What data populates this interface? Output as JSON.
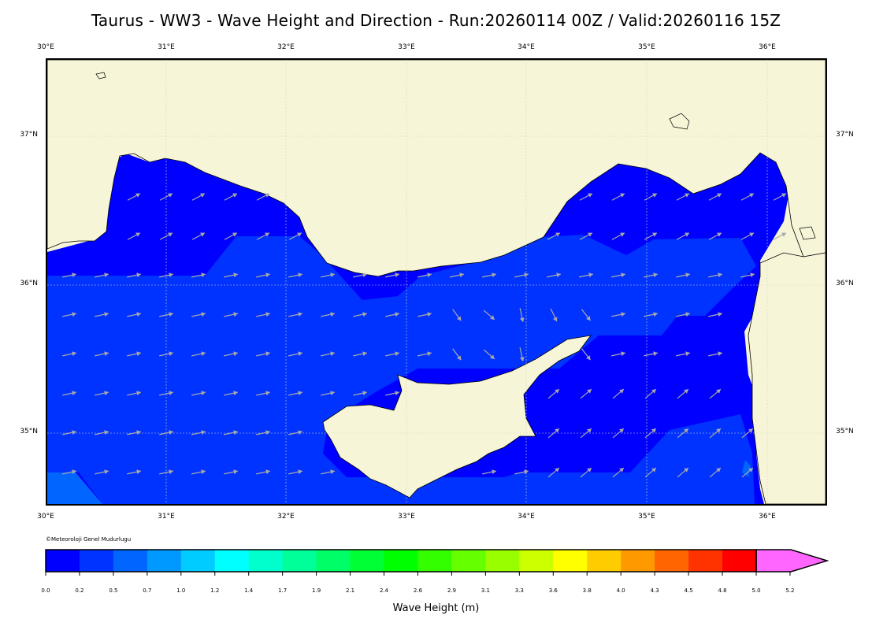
{
  "title": "Taurus - WW3 - Wave Height and Direction - Run:20260114 00Z / Valid:20260116 15Z",
  "credit": "©Meteoroloji Genel Mudurlugu",
  "lon_ticks": [
    "30°E",
    "31°E",
    "32°E",
    "33°E",
    "34°E",
    "35°E",
    "36°E"
  ],
  "lat_ticks": [
    "37°N",
    "36°N",
    "35°N"
  ],
  "map_extent": {
    "lon": [
      30.0,
      36.5
    ],
    "lat": [
      34.5,
      37.5
    ]
  },
  "colorbar": {
    "label": "Wave Height (m)",
    "ticks": [
      "0.0",
      "0.2",
      "0.5",
      "0.7",
      "1.0",
      "1.2",
      "1.4",
      "1.7",
      "1.9",
      "2.1",
      "2.4",
      "2.6",
      "2.9",
      "3.1",
      "3.3",
      "3.6",
      "3.8",
      "4.0",
      "4.3",
      "4.5",
      "4.8",
      "5.0",
      "5.2"
    ],
    "colors": [
      "#0000ff",
      "#0033ff",
      "#0066ff",
      "#0099ff",
      "#00ccff",
      "#00ffff",
      "#00ffcc",
      "#00ff99",
      "#00ff66",
      "#00ff33",
      "#00ff00",
      "#33ff00",
      "#66ff00",
      "#99ff00",
      "#ccff00",
      "#ffff00",
      "#ffcc00",
      "#ff9900",
      "#ff6600",
      "#ff3300",
      "#ff0000",
      "#ff66ff"
    ]
  },
  "colors": {
    "land": "#f7f5d8",
    "sea_lowest": "#0000ff",
    "sea_low": "#0033ff",
    "sea_mid": "#0066ff",
    "arrows": "#a9a9a9",
    "coast": "#000000"
  }
}
